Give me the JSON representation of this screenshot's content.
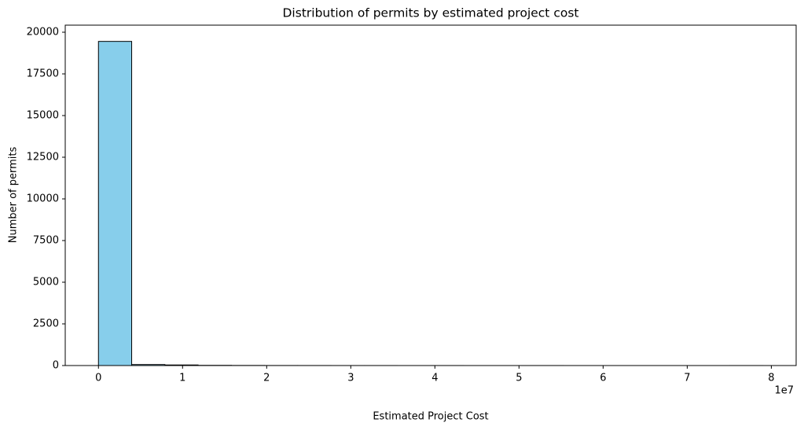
{
  "chart_data": {
    "type": "histogram",
    "title": "Distribution of permits by estimated project cost",
    "x_label": "Estimated Project Cost",
    "y_label": "Number of permits",
    "x_offset_label": "1e7",
    "bins": [
      0,
      3950000,
      7900000,
      11850000,
      15800000,
      19750000,
      23700000,
      27650000,
      31600000,
      35550000,
      39500000,
      43450000,
      47400000,
      51350000,
      55300000,
      59250000,
      63200000,
      67150000,
      71100000,
      75050000,
      79000000
    ],
    "values": [
      19450,
      60,
      35,
      12,
      6,
      3,
      2,
      1,
      1,
      0,
      1,
      0,
      0,
      1,
      0,
      0,
      0,
      0,
      0,
      1
    ],
    "color": "#87ceeb",
    "edgecolor": "#000000",
    "xlim": [
      -3950000,
      82950000
    ],
    "ylim": [
      0,
      20425
    ],
    "xticks": [
      0,
      {
        "value": 10000000,
        "label": "1"
      },
      {
        "value": 20000000,
        "label": "2"
      },
      {
        "value": 30000000,
        "label": "3"
      },
      {
        "value": 40000000,
        "label": "4"
      },
      {
        "value": 50000000,
        "label": "5"
      },
      {
        "value": 60000000,
        "label": "6"
      },
      {
        "value": 70000000,
        "label": "7"
      },
      {
        "value": 80000000,
        "label": "8"
      }
    ],
    "yticks": [
      0,
      2500,
      5000,
      7500,
      10000,
      12500,
      15000,
      17500,
      20000
    ],
    "grid": false
  }
}
